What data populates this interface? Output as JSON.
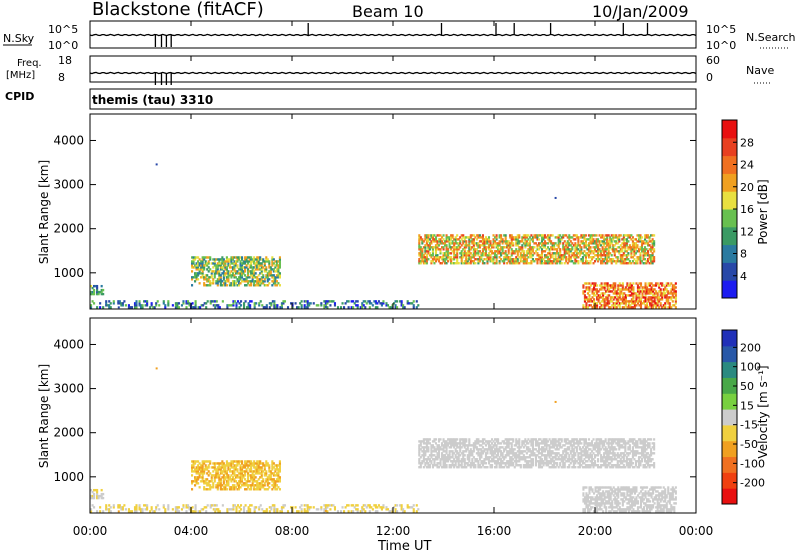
{
  "header": {
    "title": "Blackstone (fitACF)",
    "beam": "Beam 10",
    "date": "10/Jan/2009"
  },
  "status_panels": {
    "nsky": {
      "label": "N.Sky",
      "tick_top": "10^5",
      "tick_bottom": "10^0",
      "right_tick_top": "10^5",
      "right_tick_bottom": "10^0",
      "right_label": "N.Search"
    },
    "freq": {
      "label_line1": "Freq.",
      "label_line2": "[MHz]",
      "tick_top": "18",
      "tick_bottom": "8",
      "right_tick_top": "60",
      "right_tick_bottom": "0",
      "right_label": "Nave"
    },
    "cpid": {
      "label": "CPID",
      "value": "themis (tau) 3310"
    }
  },
  "axes": {
    "ylabel": "Slant Range [km]",
    "xlabel": "Time UT",
    "y_ticks": [
      "1000",
      "2000",
      "3000",
      "4000"
    ],
    "x_ticks": [
      "00:00",
      "04:00",
      "08:00",
      "12:00",
      "16:00",
      "20:00",
      "00:00"
    ]
  },
  "colorbars": {
    "power": {
      "label": "Power [dB]",
      "ticks": [
        "4",
        "8",
        "12",
        "16",
        "20",
        "24",
        "28"
      ],
      "colors": [
        "#1c1cf0",
        "#2848a8",
        "#2a7aa0",
        "#3a9a64",
        "#68c050",
        "#e8e040",
        "#f0a020",
        "#f07020",
        "#e84020",
        "#e81010"
      ]
    },
    "velocity": {
      "label": "Velocity [m s⁻¹]",
      "ticks": [
        "200",
        "100",
        "50",
        "15",
        "-15",
        "-50",
        "-100",
        "-200"
      ],
      "colors": [
        "#2030b8",
        "#2858a8",
        "#2a8a80",
        "#48a848",
        "#78d040",
        "#cccccc",
        "#f0d040",
        "#f0a020",
        "#f07020",
        "#f04010",
        "#e81010"
      ]
    }
  },
  "chart_data": {
    "type": "heatmap",
    "title": "Blackstone (fitACF)",
    "xlabel": "Time UT",
    "ylabel": "Slant Range [km]",
    "xlim": [
      "00:00",
      "24:00"
    ],
    "ylim": [
      180,
      4600
    ],
    "panels": [
      {
        "name": "Power [dB]",
        "scale": [
          0,
          30
        ],
        "regions": [
          {
            "t_start": 0.0,
            "t_end": 0.5,
            "r_low": 500,
            "r_high": 700,
            "value": 10
          },
          {
            "t_start": 4.0,
            "t_end": 7.5,
            "r_low": 700,
            "r_high": 1350,
            "value": 14
          },
          {
            "t_start": 0.0,
            "t_end": 13.0,
            "r_low": 200,
            "r_high": 380,
            "value": 8
          },
          {
            "t_start": 13.0,
            "t_end": 22.3,
            "r_low": 1200,
            "r_high": 1850,
            "value": 18
          },
          {
            "t_start": 19.5,
            "t_end": 23.2,
            "r_low": 200,
            "r_high": 750,
            "value": 22
          }
        ]
      },
      {
        "name": "Velocity [m s⁻¹]",
        "scale": [
          -250,
          250
        ],
        "regions": [
          {
            "t_start": 0.0,
            "t_end": 0.5,
            "r_low": 500,
            "r_high": 700,
            "value": -20
          },
          {
            "t_start": 4.0,
            "t_end": 7.5,
            "r_low": 700,
            "r_high": 1350,
            "value": -60
          },
          {
            "t_start": 0.0,
            "t_end": 13.0,
            "r_low": 200,
            "r_high": 380,
            "value": -30
          },
          {
            "t_start": 13.0,
            "t_end": 22.3,
            "r_low": 1200,
            "r_high": 1850,
            "value": 0
          },
          {
            "t_start": 19.5,
            "t_end": 23.2,
            "r_low": 200,
            "r_high": 750,
            "value": 0
          }
        ]
      }
    ]
  }
}
